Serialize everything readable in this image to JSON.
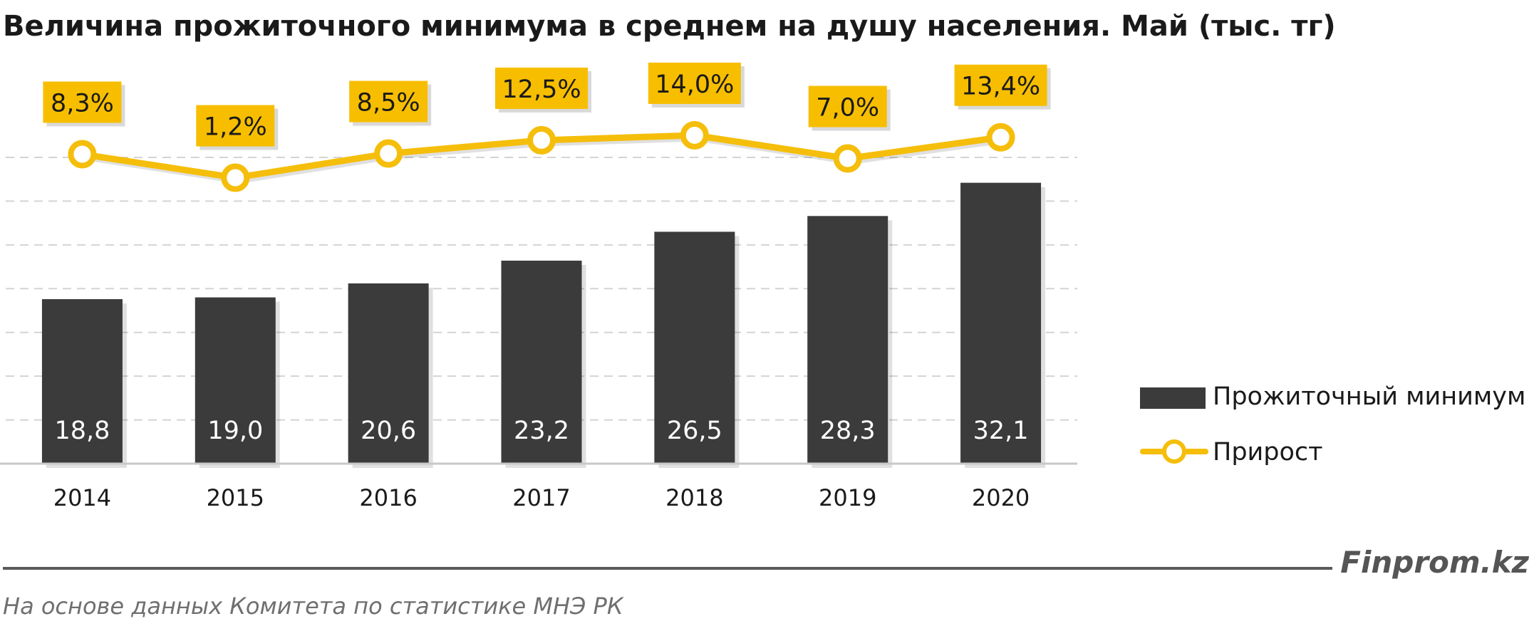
{
  "title": "Величина прожиточного минимума в среднем на душу населения. Май (тыс. тг)",
  "brand": "Finprom.kz",
  "source": "На основе данных  Комитета по статистике МНЭ РК",
  "colors": {
    "bar": "#3b3b3b",
    "line": "#f5be0b",
    "label_box": "#f7be00",
    "marker_fill": "#ffffff",
    "bar_text": "#ffffff",
    "grid": "#d4d4d4",
    "axis": "#c8c8c8"
  },
  "chart_data": {
    "type": "bar",
    "title": "Величина прожиточного минимума в среднем на душу населения. Май (тыс. тг)",
    "categories": [
      "2014",
      "2015",
      "2016",
      "2017",
      "2018",
      "2019",
      "2020"
    ],
    "series": [
      {
        "name": "Прожиточный минимум",
        "type": "bar",
        "values": [
          18.8,
          19.0,
          20.6,
          23.2,
          26.5,
          28.3,
          32.1
        ],
        "labels": [
          "18,8",
          "19,0",
          "20,6",
          "23,2",
          "26,5",
          "28,3",
          "32,1"
        ]
      },
      {
        "name": "Прирост",
        "type": "line",
        "values": [
          8.3,
          1.2,
          8.5,
          12.5,
          14.0,
          7.0,
          13.4
        ],
        "labels": [
          "8,3%",
          "1,2%",
          "8,5%",
          "12,5%",
          "14,0%",
          "7,0%",
          "13,4%"
        ]
      }
    ],
    "ylim": [
      0,
      35
    ],
    "secondary_ylim": [
      -50,
      20
    ],
    "grid": true,
    "legend": "right"
  }
}
